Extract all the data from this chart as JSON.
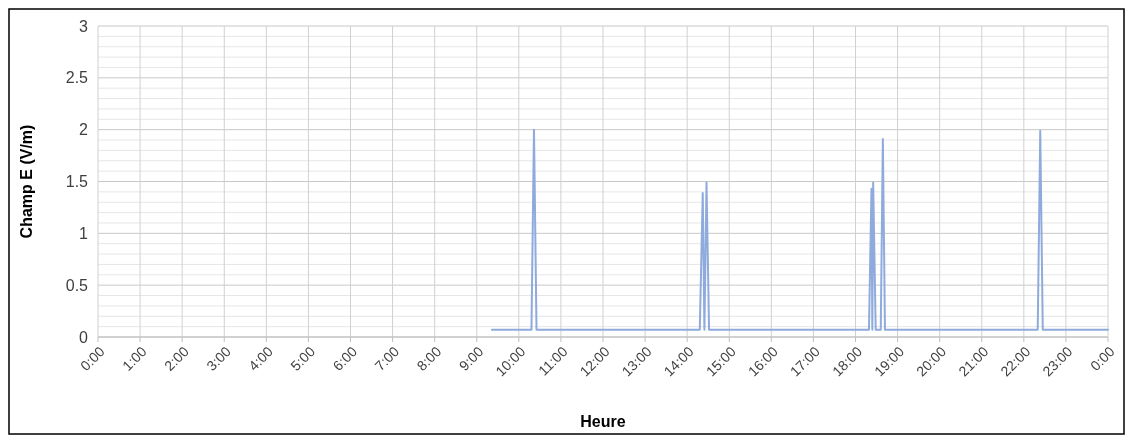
{
  "chart_data": {
    "type": "line",
    "xlabel": "Heure",
    "ylabel": "Champ E (V/m)",
    "series": [
      {
        "color": "#8faadc",
        "x": [
          9.36,
          10.3,
          10.36,
          10.42,
          14.3,
          14.37,
          14.41,
          14.46,
          14.52,
          18.32,
          18.38,
          18.4,
          18.42,
          18.48,
          18.6,
          18.65,
          18.7,
          22.33,
          22.39,
          22.45,
          24
        ],
        "values": [
          0.07,
          0.07,
          2.0,
          0.07,
          0.07,
          1.39,
          0.07,
          1.49,
          0.07,
          0.07,
          1.43,
          0.07,
          1.49,
          0.07,
          0.07,
          1.91,
          0.07,
          0.07,
          1.99,
          0.07,
          0.07
        ]
      }
    ],
    "xlim": [
      0,
      24
    ],
    "xticks": [
      {
        "value": 0,
        "label": "0:00"
      },
      {
        "value": 1,
        "label": "1:00"
      },
      {
        "value": 2,
        "label": "2:00"
      },
      {
        "value": 3,
        "label": "3:00"
      },
      {
        "value": 4,
        "label": "4:00"
      },
      {
        "value": 5,
        "label": "5:00"
      },
      {
        "value": 6,
        "label": "6:00"
      },
      {
        "value": 7,
        "label": "7:00"
      },
      {
        "value": 8,
        "label": "8:00"
      },
      {
        "value": 9,
        "label": "9:00"
      },
      {
        "value": 10,
        "label": "10:00"
      },
      {
        "value": 11,
        "label": "11:00"
      },
      {
        "value": 12,
        "label": "12:00"
      },
      {
        "value": 13,
        "label": "13:00"
      },
      {
        "value": 14,
        "label": "14:00"
      },
      {
        "value": 15,
        "label": "15:00"
      },
      {
        "value": 16,
        "label": "16:00"
      },
      {
        "value": 17,
        "label": "17:00"
      },
      {
        "value": 18,
        "label": "18:00"
      },
      {
        "value": 19,
        "label": "19:00"
      },
      {
        "value": 20,
        "label": "20:00"
      },
      {
        "value": 21,
        "label": "21:00"
      },
      {
        "value": 22,
        "label": "22:00"
      },
      {
        "value": 23,
        "label": "23:00"
      },
      {
        "value": 24,
        "label": "0:00"
      }
    ],
    "ylim": [
      0,
      3
    ],
    "yticks": [
      0,
      {
        "value": 0.1,
        "label": null
      },
      {
        "value": 0.2,
        "label": null
      },
      {
        "value": 0.3,
        "label": null
      },
      {
        "value": 0.4,
        "label": null
      },
      0.5,
      {
        "value": 0.6,
        "label": null
      },
      {
        "value": 0.7,
        "label": null
      },
      {
        "value": 0.8,
        "label": null
      },
      {
        "value": 0.9,
        "label": null
      },
      1,
      {
        "value": 1.1,
        "label": null
      },
      {
        "value": 1.2,
        "label": null
      },
      {
        "value": 1.3,
        "label": null
      },
      {
        "value": 1.4,
        "label": null
      },
      1.5,
      {
        "value": 1.6,
        "label": null
      },
      {
        "value": 1.7,
        "label": null
      },
      {
        "value": 1.8,
        "label": null
      },
      {
        "value": 1.9,
        "label": null
      },
      2,
      {
        "value": 2.1,
        "label": null
      },
      {
        "value": 2.2,
        "label": null
      },
      {
        "value": 2.3,
        "label": null
      },
      {
        "value": 2.4,
        "label": null
      },
      2.5,
      {
        "value": 2.6,
        "label": null
      },
      {
        "value": 2.7,
        "label": null
      },
      {
        "value": 2.8,
        "label": null
      },
      {
        "value": 2.9,
        "label": null
      },
      3
    ],
    "grid": true,
    "marker": "none",
    "line_style": "solid"
  }
}
